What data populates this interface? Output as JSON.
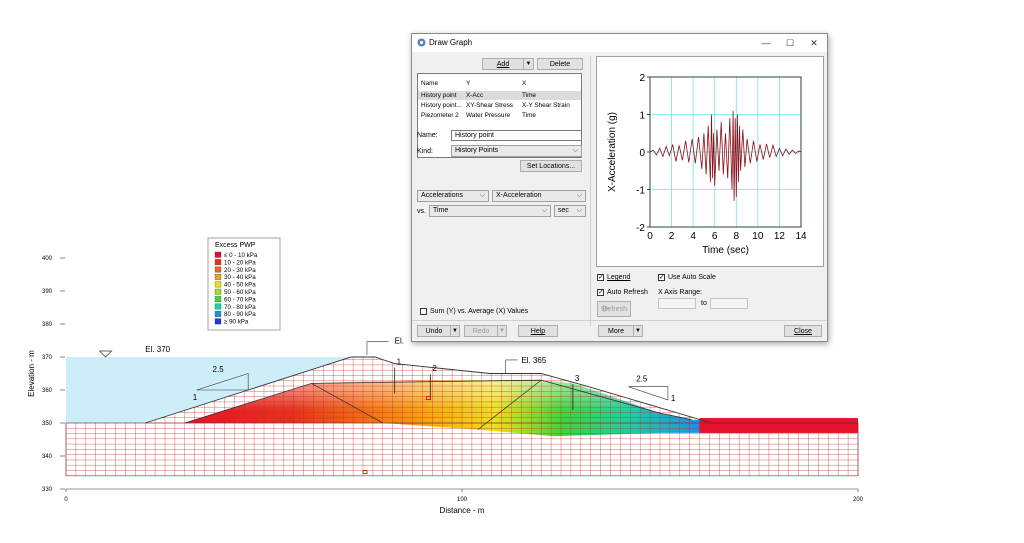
{
  "model": {
    "elevation_axis_label": "Elevation - m",
    "distance_axis_label": "Distance - m",
    "y_ticks": [
      "400",
      "390",
      "380",
      "370",
      "360",
      "350",
      "340",
      "330"
    ],
    "x_ticks": [
      "0",
      "100",
      "200"
    ],
    "el_370": "El. 370",
    "el_365": "El. 365",
    "el_top": "El.",
    "slope_left_h": "2.5",
    "slope_left_v": "1",
    "slope_right_h": "2.5",
    "slope_right_v": "1",
    "points": [
      "1",
      "2",
      "3"
    ]
  },
  "legend": {
    "title": "Excess PWP",
    "items": [
      {
        "label": "≤ 0 - 10 kPa",
        "color": "#e8102a"
      },
      {
        "label": "10 - 20 kPa",
        "color": "#e5321c"
      },
      {
        "label": "20 - 30 kPa",
        "color": "#f06a16"
      },
      {
        "label": "30 - 40 kPa",
        "color": "#f5a70f"
      },
      {
        "label": "40 - 50 kPa",
        "color": "#e9e21b"
      },
      {
        "label": "50 - 60 kPa",
        "color": "#a6de22"
      },
      {
        "label": "60 - 70 kPa",
        "color": "#3fd63b"
      },
      {
        "label": "70 - 80 kPa",
        "color": "#1ccfa2"
      },
      {
        "label": "80 - 90 kPa",
        "color": "#1c93e6"
      },
      {
        "label": "≥ 90 kPa",
        "color": "#2436d8"
      }
    ]
  },
  "dialog": {
    "title": "Draw Graph",
    "minimize": "—",
    "maximize": "☐",
    "close": "✕",
    "add_label": "Add",
    "delete_label": "Delete",
    "list_headers": [
      "Name",
      "Y",
      "X"
    ],
    "list_rows": [
      [
        "History point",
        "X-Acc",
        "Time"
      ],
      [
        "History point...",
        "XY-Shear Stress",
        "X-Y Shear Strain"
      ],
      [
        "Piezometer 2",
        "Water Pressure",
        "Time"
      ]
    ],
    "name_label": "Name:",
    "name_value": "History point",
    "kind_label": "Kind:",
    "kind_value": "History Points",
    "set_locations": "Set Locations...",
    "y_category": "Accelerations",
    "y_quantity": "X-Acceleration",
    "vs_label": "vs.",
    "x_quantity": "Time",
    "x_unit": "sec",
    "sum_label": "Sum (Y) vs. Average (X) Values",
    "legend_cb": "Legend",
    "auto_refresh": "Auto Refresh",
    "refresh": "Refresh",
    "use_auto_scale": "Use Auto Scale",
    "x_axis_range": "X Axis Range:",
    "to_label": "to",
    "undo": "Undo",
    "redo": "Redo",
    "help": "Help",
    "more": "More",
    "close_btn": "Close"
  },
  "colors": {
    "water": "#cdeef9",
    "mesh": "#cc2a2a",
    "graph_grid": "#6fe3ee",
    "graph_line": "#8b0f18"
  },
  "chart_data": {
    "type": "line",
    "title": "",
    "xlabel": "Time (sec)",
    "ylabel": "X-Acceleration (g)",
    "xlim": [
      0,
      14
    ],
    "ylim": [
      -2,
      2
    ],
    "xticks": [
      "0",
      "2",
      "4",
      "6",
      "8",
      "10",
      "12",
      "14"
    ],
    "yticks": [
      "2",
      "1",
      "0",
      "-1",
      "-2"
    ],
    "series": [
      {
        "x": [
          0,
          0.3,
          0.6,
          0.9,
          1.2,
          1.5,
          1.8,
          2.1,
          2.4,
          2.7,
          3.0,
          3.3,
          3.6,
          3.9,
          4.2,
          4.5,
          4.8,
          5.0,
          5.2,
          5.4,
          5.6,
          5.7,
          5.8,
          5.9,
          6.0,
          6.2,
          6.4,
          6.6,
          6.8,
          7.0,
          7.2,
          7.4,
          7.6,
          7.7,
          7.8,
          7.9,
          8.0,
          8.1,
          8.2,
          8.3,
          8.4,
          8.6,
          8.8,
          9.0,
          9.3,
          9.6,
          9.9,
          10.2,
          10.5,
          10.8,
          11.1,
          11.4,
          11.7,
          12.0,
          12.3,
          12.6,
          12.9,
          13.2,
          13.5,
          13.8,
          14.0
        ],
        "y": [
          0,
          0.05,
          -0.08,
          0.1,
          -0.12,
          0.15,
          -0.1,
          0.2,
          -0.25,
          0.18,
          -0.22,
          0.3,
          -0.28,
          0.35,
          -0.3,
          0.4,
          -0.45,
          0.5,
          -0.6,
          0.7,
          -0.8,
          1.0,
          -0.7,
          0.5,
          -0.9,
          0.6,
          -0.5,
          0.8,
          -0.6,
          0.5,
          -0.7,
          0.9,
          -1.0,
          1.1,
          -1.3,
          0.9,
          -1.2,
          1.0,
          -0.8,
          0.7,
          -0.5,
          0.6,
          -0.4,
          0.35,
          -0.3,
          0.3,
          -0.25,
          0.2,
          -0.2,
          0.22,
          -0.15,
          0.18,
          -0.12,
          0.1,
          -0.1,
          0.08,
          -0.06,
          0.05,
          -0.04,
          0.03,
          0
        ]
      }
    ]
  }
}
